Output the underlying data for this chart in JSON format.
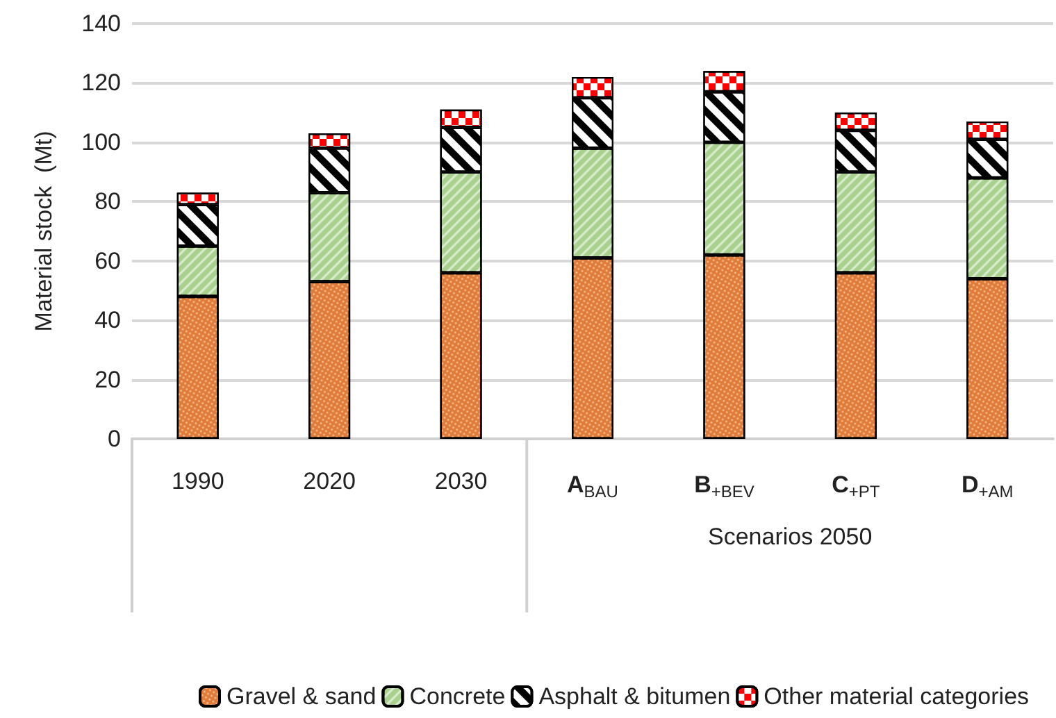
{
  "chart_data": {
    "type": "bar",
    "stacked": true,
    "ylabel": "Material stock  (Mt)",
    "categories": [
      "1990",
      "2020",
      "2030",
      "A$_{BAU}$",
      "B$_{+BEV}$",
      "C$_{+PT}$",
      "D$_{+AM}$"
    ],
    "series": [
      {
        "name": "Gravel & sand",
        "color": "#e07b39",
        "values": [
          48,
          53,
          56,
          61,
          62,
          56,
          54
        ]
      },
      {
        "name": "Concrete",
        "color": "#a9d18e",
        "values": [
          17,
          30,
          34,
          37,
          38,
          34,
          34
        ]
      },
      {
        "name": "Asphalt & bitumen",
        "color": "#000000",
        "values": [
          14,
          15,
          15,
          17,
          17,
          14,
          13
        ]
      },
      {
        "name": "Other material categories",
        "color": "#ff0000",
        "values": [
          4,
          5,
          6,
          7,
          7,
          6,
          6
        ]
      }
    ],
    "ylim": [
      0,
      140
    ],
    "yticks": [
      0,
      20,
      40,
      60,
      80,
      100,
      120,
      140
    ],
    "grid": "y",
    "legend": "bottom",
    "annotations": [
      "Scenarios 2050"
    ]
  }
}
